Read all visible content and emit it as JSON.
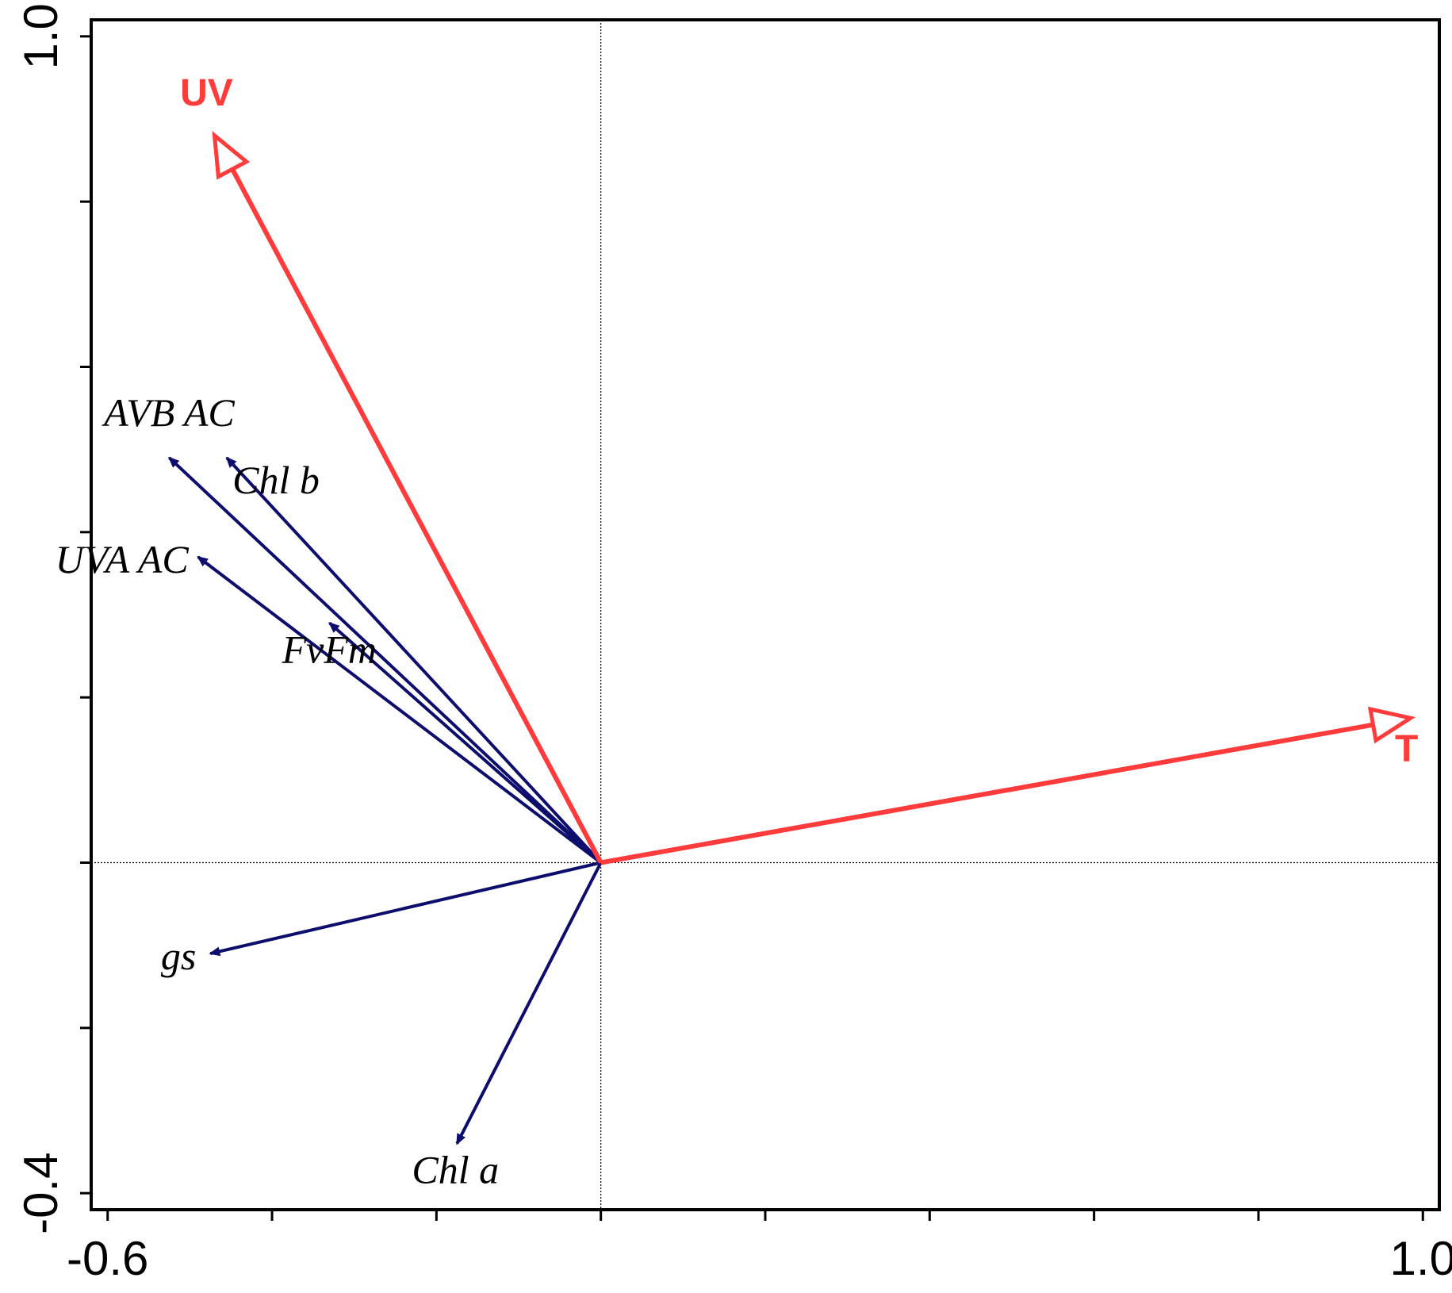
{
  "chart_data": {
    "type": "biplot",
    "title": "",
    "xlabel": "",
    "ylabel": "",
    "xlim": [
      -0.62,
      1.02
    ],
    "ylim": [
      -0.42,
      1.02
    ],
    "x_tick_labels": [
      {
        "value": -0.6,
        "label": "-0.6"
      },
      {
        "value": 1.0,
        "label": "1.0"
      }
    ],
    "y_tick_labels": [
      {
        "value": 1.0,
        "label": "1.0"
      },
      {
        "value": -0.4,
        "label": "-0.4"
      }
    ],
    "x_ticks": [
      -0.6,
      -0.4,
      -0.2,
      0.0,
      0.2,
      0.4,
      0.6,
      0.8,
      1.0
    ],
    "y_ticks": [
      -0.4,
      -0.2,
      0.0,
      0.2,
      0.4,
      0.6,
      0.8,
      1.0
    ],
    "zero_lines": true,
    "environmental_variables": [
      {
        "name": "UV",
        "x": -0.47,
        "y": 0.88,
        "color": "#ff3b3b"
      },
      {
        "name": "T",
        "x": 0.985,
        "y": 0.175,
        "color": "#ff3b3b"
      }
    ],
    "response_variables": [
      {
        "name": "AVB AC",
        "x": -0.525,
        "y": 0.49,
        "color": "#0d0d6e"
      },
      {
        "name": "Chl b",
        "x": -0.455,
        "y": 0.49,
        "color": "#0d0d6e"
      },
      {
        "name": "UVA AC",
        "x": -0.49,
        "y": 0.37,
        "color": "#0d0d6e"
      },
      {
        "name": "FvFm",
        "x": -0.33,
        "y": 0.29,
        "color": "#0d0d6e"
      },
      {
        "name": "gs",
        "x": -0.475,
        "y": -0.11,
        "color": "#0d0d6e"
      },
      {
        "name": "Chl a",
        "x": -0.175,
        "y": -0.34,
        "color": "#0d0d6e"
      }
    ]
  }
}
